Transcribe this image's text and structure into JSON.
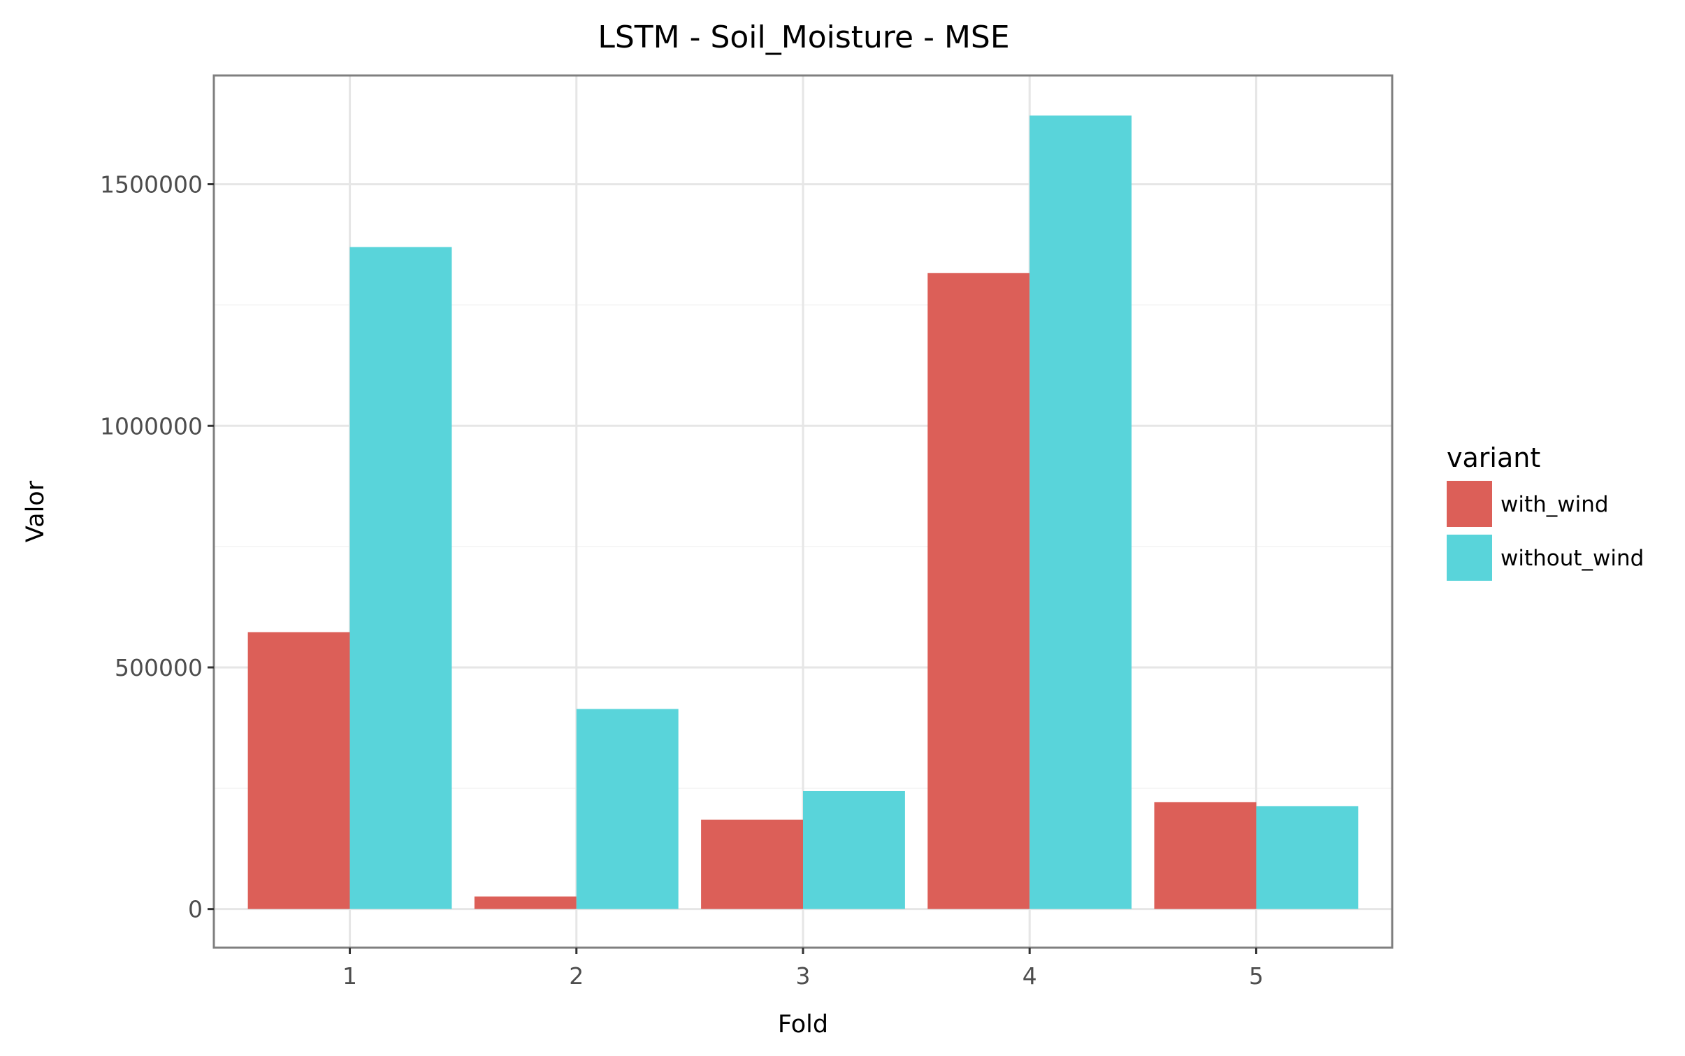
{
  "chart_data": {
    "type": "bar",
    "title": "LSTM - Soil_Moisture - MSE",
    "xlabel": "Fold",
    "ylabel": "Valor",
    "categories": [
      "1",
      "2",
      "3",
      "4",
      "5"
    ],
    "series": [
      {
        "name": "with_wind",
        "color": "#dc5f58",
        "values": [
          573000,
          26000,
          185000,
          1316000,
          221000
        ]
      },
      {
        "name": "without_wind",
        "color": "#59d4da",
        "values": [
          1370000,
          414000,
          244000,
          1642000,
          213000
        ]
      }
    ],
    "ylim": [
      -80000,
      1725000
    ],
    "yticks": [
      0,
      500000,
      1000000,
      1500000
    ],
    "ytick_labels": [
      "0",
      "500000",
      "1000000",
      "1500000"
    ],
    "legend": {
      "title": "variant",
      "position": "right"
    },
    "grid": true,
    "theme": "bw"
  }
}
